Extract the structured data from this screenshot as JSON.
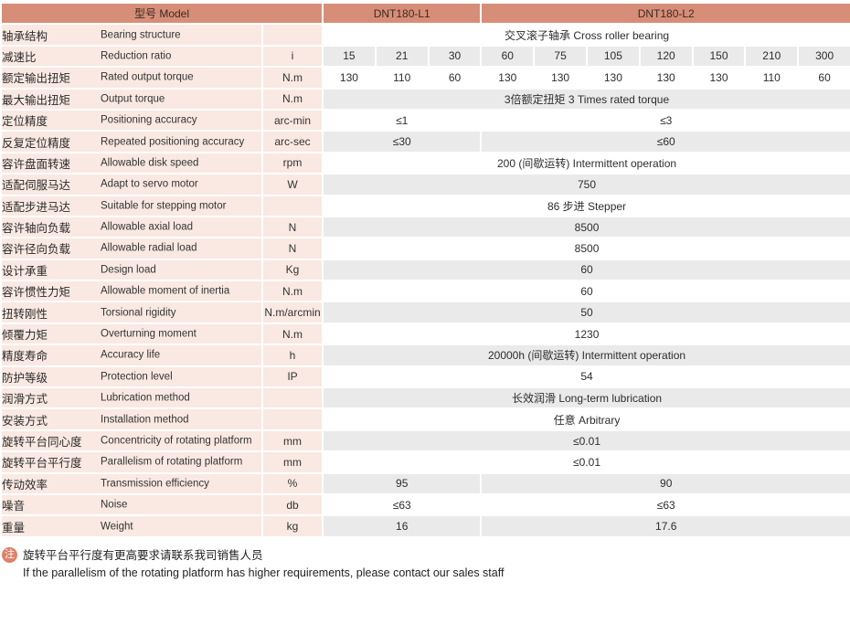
{
  "header": {
    "model_label": "型号 Model",
    "models": [
      "DNT180-L1",
      "DNT180-L2"
    ]
  },
  "rows": [
    {
      "zh": "轴承结构",
      "en": "Bearing structure",
      "unit": "",
      "cells": [
        {
          "span": 10,
          "text": "交叉滚子轴承 Cross roller bearing"
        }
      ]
    },
    {
      "zh": "减速比",
      "en": "Reduction ratio",
      "unit": "i",
      "cells": [
        {
          "span": 1,
          "text": "15"
        },
        {
          "span": 1,
          "text": "21"
        },
        {
          "span": 1,
          "text": "30"
        },
        {
          "span": 1,
          "text": "60"
        },
        {
          "span": 1,
          "text": "75"
        },
        {
          "span": 1,
          "text": "105"
        },
        {
          "span": 1,
          "text": "120"
        },
        {
          "span": 1,
          "text": "150"
        },
        {
          "span": 1,
          "text": "210"
        },
        {
          "span": 1,
          "text": "300"
        }
      ]
    },
    {
      "zh": "额定输出扭矩",
      "en": "Rated output torque",
      "unit": "N.m",
      "cells": [
        {
          "span": 1,
          "text": "130"
        },
        {
          "span": 1,
          "text": "110"
        },
        {
          "span": 1,
          "text": "60"
        },
        {
          "span": 1,
          "text": "130"
        },
        {
          "span": 1,
          "text": "130"
        },
        {
          "span": 1,
          "text": "130"
        },
        {
          "span": 1,
          "text": "130"
        },
        {
          "span": 1,
          "text": "130"
        },
        {
          "span": 1,
          "text": "110"
        },
        {
          "span": 1,
          "text": "60"
        }
      ]
    },
    {
      "zh": "最大输出扭矩",
      "en": "Output torque",
      "unit": "N.m",
      "cells": [
        {
          "span": 10,
          "text": "3倍额定扭矩 3 Times rated torque"
        }
      ]
    },
    {
      "zh": "定位精度",
      "en": "Positioning accuracy",
      "unit": "arc-min",
      "cells": [
        {
          "span": 3,
          "text": "≤1"
        },
        {
          "span": 7,
          "text": "≤3"
        }
      ]
    },
    {
      "zh": "反复定位精度",
      "en": "Repeated positioning accuracy",
      "unit": "arc-sec",
      "cells": [
        {
          "span": 3,
          "text": "≤30"
        },
        {
          "span": 7,
          "text": "≤60"
        }
      ]
    },
    {
      "zh": "容许盘面转速",
      "en": "Allowable disk speed",
      "unit": "rpm",
      "cells": [
        {
          "span": 10,
          "text": "200 (间歇运转) Intermittent operation"
        }
      ]
    },
    {
      "zh": "适配伺服马达",
      "en": "Adapt to servo motor",
      "unit": "W",
      "cells": [
        {
          "span": 10,
          "text": "750"
        }
      ]
    },
    {
      "zh": "适配步进马达",
      "en": "Suitable for stepping motor",
      "unit": "",
      "cells": [
        {
          "span": 10,
          "text": "86 步进 Stepper"
        }
      ]
    },
    {
      "zh": "容许轴向负载",
      "en": "Allowable axial load",
      "unit": "N",
      "cells": [
        {
          "span": 10,
          "text": "8500"
        }
      ]
    },
    {
      "zh": "容许径向负载",
      "en": "Allowable radial load",
      "unit": "N",
      "cells": [
        {
          "span": 10,
          "text": "8500"
        }
      ]
    },
    {
      "zh": "设计承重",
      "en": "Design load",
      "unit": "Kg",
      "cells": [
        {
          "span": 10,
          "text": "60"
        }
      ]
    },
    {
      "zh": "容许惯性力矩",
      "en": "Allowable moment of inertia",
      "unit": "N.m",
      "cells": [
        {
          "span": 10,
          "text": "60"
        }
      ]
    },
    {
      "zh": "扭转刚性",
      "en": "Torsional rigidity",
      "unit": "N.m/arcmin",
      "cells": [
        {
          "span": 10,
          "text": "50"
        }
      ]
    },
    {
      "zh": "倾覆力矩",
      "en": "Overturning moment",
      "unit": "N.m",
      "cells": [
        {
          "span": 10,
          "text": "1230"
        }
      ]
    },
    {
      "zh": "精度寿命",
      "en": "Accuracy life",
      "unit": "h",
      "cells": [
        {
          "span": 10,
          "text": "20000h (间歇运转) Intermittent operation"
        }
      ]
    },
    {
      "zh": "防护等级",
      "en": "Protection level",
      "unit": "IP",
      "cells": [
        {
          "span": 10,
          "text": "54"
        }
      ]
    },
    {
      "zh": "润滑方式",
      "en": "Lubrication method",
      "unit": "",
      "cells": [
        {
          "span": 10,
          "text": "长效润滑 Long-term lubrication"
        }
      ]
    },
    {
      "zh": "安装方式",
      "en": "Installation method",
      "unit": "",
      "cells": [
        {
          "span": 10,
          "text": "任意 Arbitrary"
        }
      ]
    },
    {
      "zh": "旋转平台同心度",
      "en": "Concentricity of rotating platform",
      "unit": "mm",
      "cells": [
        {
          "span": 10,
          "text": "≤0.01"
        }
      ]
    },
    {
      "zh": "旋转平台平行度",
      "en": "Parallelism of rotating platform",
      "unit": "mm",
      "cells": [
        {
          "span": 10,
          "text": "≤0.01"
        }
      ]
    },
    {
      "zh": "传动效率",
      "en": "Transmission efficiency",
      "unit": "%",
      "cells": [
        {
          "span": 3,
          "text": "95"
        },
        {
          "span": 7,
          "text": "90"
        }
      ]
    },
    {
      "zh": "噪音",
      "en": "Noise",
      "unit": "db",
      "cells": [
        {
          "span": 3,
          "text": "≤63"
        },
        {
          "span": 7,
          "text": "≤63"
        }
      ]
    },
    {
      "zh": "重量",
      "en": "Weight",
      "unit": "kg",
      "cells": [
        {
          "span": 3,
          "text": "16"
        },
        {
          "span": 7,
          "text": "17.6"
        }
      ]
    }
  ],
  "note": {
    "badge": "注",
    "zh": "旋转平台平行度有更高要求请联系我司销售人员",
    "en": "If the parallelism of the rotating platform has higher requirements, please contact our sales staff"
  },
  "colors": {
    "header_bg": "#D78E78",
    "header_text": "#3A2A23",
    "row_pink": "#F9E9E2",
    "row_gray": "#EAEAEA",
    "row_white": "#FFFFFF",
    "value_text": "#2D2D2D",
    "badge_bg": "#DD8166",
    "separator": "#FFFFFF"
  }
}
